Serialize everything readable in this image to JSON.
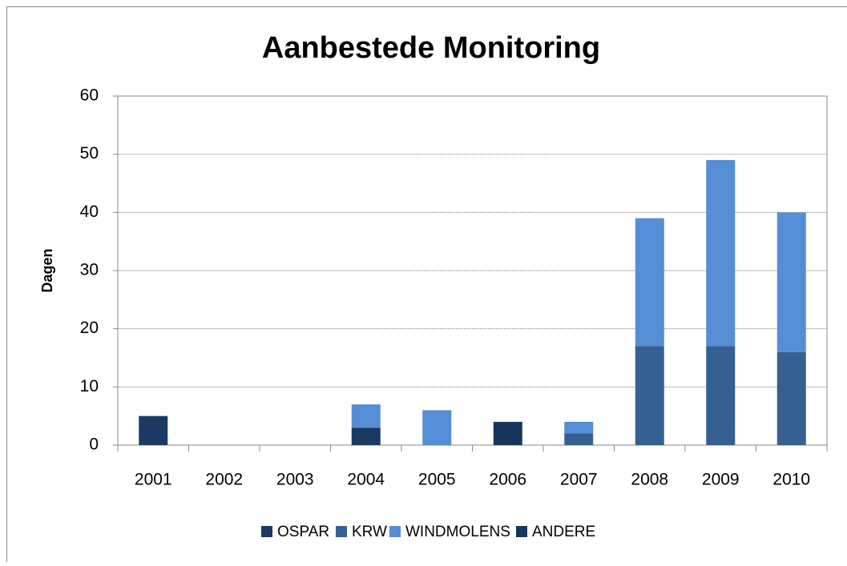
{
  "chart_data": {
    "type": "stacked_bar",
    "title": "Aanbestede  Monitoring",
    "y_label": "Dagen",
    "categories": [
      "2001",
      "2002",
      "2003",
      "2004",
      "2005",
      "2006",
      "2007",
      "2008",
      "2009",
      "2010"
    ],
    "series": [
      {
        "name": "OSPAR",
        "color": "#1b3a63",
        "values": [
          5,
          null,
          null,
          3,
          null,
          null,
          null,
          null,
          null,
          null
        ]
      },
      {
        "name": "KRW",
        "color": "#376092",
        "values": [
          null,
          null,
          null,
          null,
          null,
          null,
          2,
          17,
          17,
          16
        ]
      },
      {
        "name": "WINDMOLENS",
        "color": "#558ed5",
        "values": [
          null,
          null,
          null,
          4,
          6,
          null,
          2,
          22,
          32,
          24
        ]
      },
      {
        "name": "ANDERE",
        "color": "#17365d",
        "values": [
          null,
          null,
          null,
          null,
          null,
          4,
          null,
          null,
          null,
          null
        ]
      }
    ],
    "ylim": [
      0,
      60
    ],
    "yticks": [
      0,
      10,
      20,
      30,
      40,
      50,
      60
    ],
    "grid": true,
    "legend": "bottom"
  }
}
